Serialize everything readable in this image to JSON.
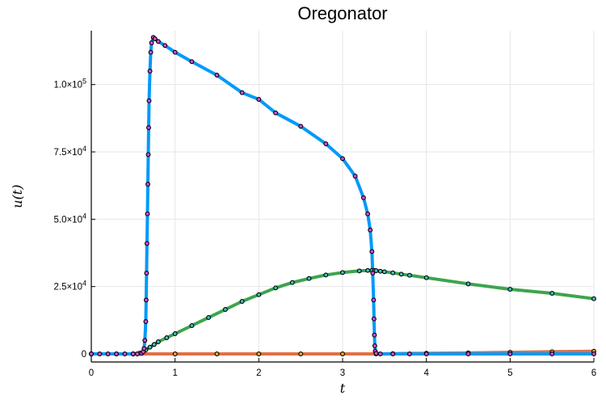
{
  "chart_data": {
    "type": "line",
    "title": "Oregonator",
    "xlabel": "t",
    "ylabel": "u(t)",
    "xlim": [
      0,
      6
    ],
    "ylim": [
      -3000,
      120000
    ],
    "x_ticks": [
      0,
      1,
      2,
      3,
      4,
      5,
      6
    ],
    "x_tick_labels": [
      "0",
      "1",
      "2",
      "3",
      "4",
      "5",
      "6"
    ],
    "y_ticks": [
      0,
      25000,
      50000,
      75000,
      100000
    ],
    "y_tick_labels": [
      {
        "mant": "0",
        "exp": ""
      },
      {
        "mant": "2.5×10",
        "exp": "4"
      },
      {
        "mant": "5.0×10",
        "exp": "4"
      },
      {
        "mant": "7.5×10",
        "exp": "4"
      },
      {
        "mant": "1.0×10",
        "exp": "5"
      }
    ],
    "grid": true,
    "legend": false,
    "series": [
      {
        "color": "#009af9",
        "x": [
          0,
          0.1,
          0.2,
          0.3,
          0.4,
          0.5,
          0.55,
          0.6,
          0.62,
          0.63,
          0.64,
          0.65,
          0.655,
          0.66,
          0.665,
          0.67,
          0.675,
          0.68,
          0.685,
          0.69,
          0.7,
          0.71,
          0.72,
          0.74,
          0.76,
          0.8,
          0.88,
          1.0,
          1.2,
          1.5,
          1.8,
          2.0,
          2.2,
          2.5,
          2.8,
          3.0,
          3.15,
          3.25,
          3.3,
          3.33,
          3.35,
          3.36,
          3.37,
          3.375,
          3.38,
          3.385,
          3.39,
          3.4,
          3.45,
          3.6,
          3.8,
          4.0,
          4.5,
          5.0,
          5.5,
          6.0
        ],
        "y": [
          0,
          0,
          0,
          0,
          0,
          0,
          0,
          200,
          800,
          2000,
          5000,
          12000,
          20000,
          30000,
          41000,
          52000,
          63000,
          74000,
          84000,
          94000,
          105000,
          112000,
          115500,
          117500,
          117000,
          116000,
          114500,
          112000,
          108500,
          103500,
          97000,
          94500,
          89500,
          84500,
          78000,
          72500,
          66000,
          58000,
          52000,
          46000,
          38000,
          30000,
          20000,
          13000,
          7000,
          3000,
          1000,
          200,
          0,
          0,
          0,
          0,
          0,
          0,
          0,
          0
        ]
      },
      {
        "color": "#e26f46",
        "x": [
          0,
          0.5,
          1.0,
          1.5,
          2.0,
          2.5,
          3.0,
          3.4,
          3.6,
          4.0,
          4.5,
          5.0,
          5.5,
          6.0
        ],
        "y": [
          0,
          0,
          0,
          0,
          0,
          0,
          0,
          0,
          100,
          250,
          400,
          600,
          800,
          1000
        ]
      },
      {
        "color": "#3da44d",
        "x": [
          0,
          0.3,
          0.5,
          0.58,
          0.62,
          0.65,
          0.7,
          0.75,
          0.8,
          0.9,
          1.0,
          1.2,
          1.4,
          1.6,
          1.8,
          2.0,
          2.2,
          2.4,
          2.6,
          2.8,
          3.0,
          3.2,
          3.3,
          3.35,
          3.38,
          3.4,
          3.45,
          3.5,
          3.6,
          3.7,
          3.8,
          4.0,
          4.5,
          5.0,
          5.5,
          6.0
        ],
        "y": [
          0,
          0,
          0,
          300,
          800,
          1500,
          2500,
          3500,
          4500,
          6000,
          7500,
          10500,
          13500,
          16500,
          19500,
          22000,
          24500,
          26500,
          28000,
          29300,
          30200,
          30800,
          31000,
          31000,
          30950,
          30900,
          30700,
          30500,
          30100,
          29600,
          29200,
          28300,
          26000,
          24000,
          22500,
          20500
        ]
      }
    ],
    "markers": {
      "fill": "#40c0c0",
      "stroke": "#000000",
      "accent_fill": "#d050d0",
      "accent2_fill": "#e8b030"
    }
  }
}
